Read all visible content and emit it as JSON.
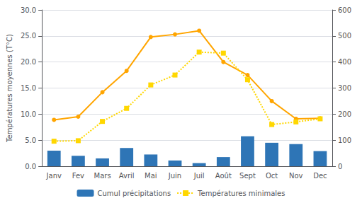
{
  "chart_data": {
    "type": "line",
    "categories": [
      "Janv",
      "Fev",
      "Mars",
      "Avril",
      "Mai",
      "Juin",
      "Juil",
      "Août",
      "Sept",
      "Oct",
      "Nov",
      "Dec"
    ],
    "ylabel": "Températures moyennes (T°C)",
    "ylim": [
      0,
      30
    ],
    "yticks": [
      {
        "value": 0,
        "label": "0.0"
      },
      {
        "value": 5,
        "label": "5.0"
      },
      {
        "value": 10,
        "label": "10.0"
      },
      {
        "value": 15,
        "label": "15.0"
      },
      {
        "value": 20,
        "label": "20.0"
      },
      {
        "value": 25,
        "label": "25.0"
      },
      {
        "value": 30,
        "label": "30.0"
      }
    ],
    "y2lim": [
      0,
      600
    ],
    "y2ticks": [
      0,
      100,
      200,
      300,
      400,
      500,
      600
    ],
    "grid": true,
    "legend": "bottom",
    "series": [
      {
        "name": "Cumul précipitations",
        "type": "bar",
        "axis": "y2",
        "color": "#2E75B6",
        "values": [
          60,
          40,
          30,
          70,
          45,
          22,
          12,
          35,
          115,
          90,
          85,
          58
        ]
      },
      {
        "color": "#FFA500",
        "marker": "circle",
        "line_style": "solid",
        "values": [
          8.9,
          9.5,
          14.2,
          18.3,
          24.8,
          25.3,
          26.0,
          20.0,
          17.5,
          12.5,
          9.1,
          9.2
        ]
      },
      {
        "name": "Températures minimales",
        "color": "#FFD700",
        "marker": "square",
        "line_style": "dotted",
        "values": [
          4.8,
          4.9,
          8.6,
          11.1,
          15.6,
          17.5,
          21.9,
          21.7,
          16.6,
          8.0,
          8.5,
          9.1
        ]
      }
    ]
  }
}
